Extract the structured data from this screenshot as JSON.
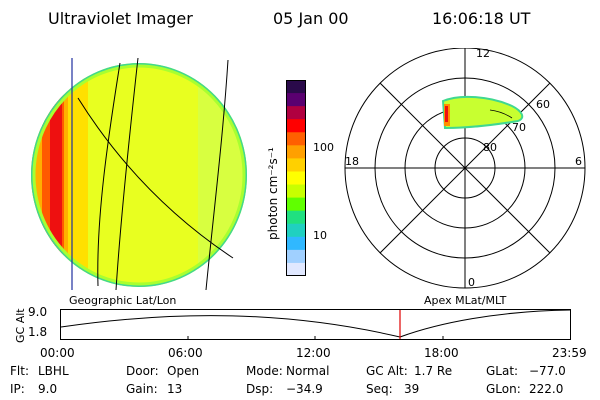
{
  "header": {
    "instrument": "Ultraviolet Imager",
    "date": "05 Jan 00",
    "time": "16:06:18 UT"
  },
  "colorbar": {
    "label": "photon cm⁻²s⁻¹",
    "ticks": [
      "100",
      "10"
    ],
    "colors": [
      "#2a0a4a",
      "#5a0070",
      "#b00040",
      "#ff0000",
      "#ff6000",
      "#ffa000",
      "#ffd000",
      "#ffff00",
      "#c8ff00",
      "#60ff00",
      "#20e080",
      "#20d0c0",
      "#30b8ff",
      "#a0d0ff",
      "#e0e8ff"
    ]
  },
  "disk": {
    "label": "Geographic Lat/Lon"
  },
  "polar": {
    "label": "Apex MLat/MLT",
    "mlt_labels": {
      "top": "12",
      "left": "18",
      "right": "6",
      "bottom": "0"
    },
    "lat_labels": [
      "60",
      "70",
      "80"
    ]
  },
  "altitude_plot": {
    "ylabel": "GC Alt",
    "yticks": [
      "9.0",
      "1.8"
    ],
    "xticks": [
      "00:00",
      "06:00",
      "12:00",
      "18:00",
      "23:59"
    ]
  },
  "info": {
    "flt_label": "Flt:",
    "flt_value": "LBHL",
    "ip_label": "IP:",
    "ip_value": "9.0",
    "door_label": "Door:",
    "door_value": "Open",
    "gain_label": "Gain:",
    "gain_value": "13",
    "mode_label": "Mode:",
    "mode_value": "Normal",
    "dsp_label": "Dsp:",
    "dsp_value": "−34.9",
    "gcalt_label": "GC Alt:",
    "gcalt_value": "1.7 Re",
    "seq_label": "Seq:",
    "seq_value": "39",
    "glat_label": "GLat:",
    "glat_value": "−77.0",
    "glon_label": "GLon:",
    "glon_value": "222.0"
  }
}
